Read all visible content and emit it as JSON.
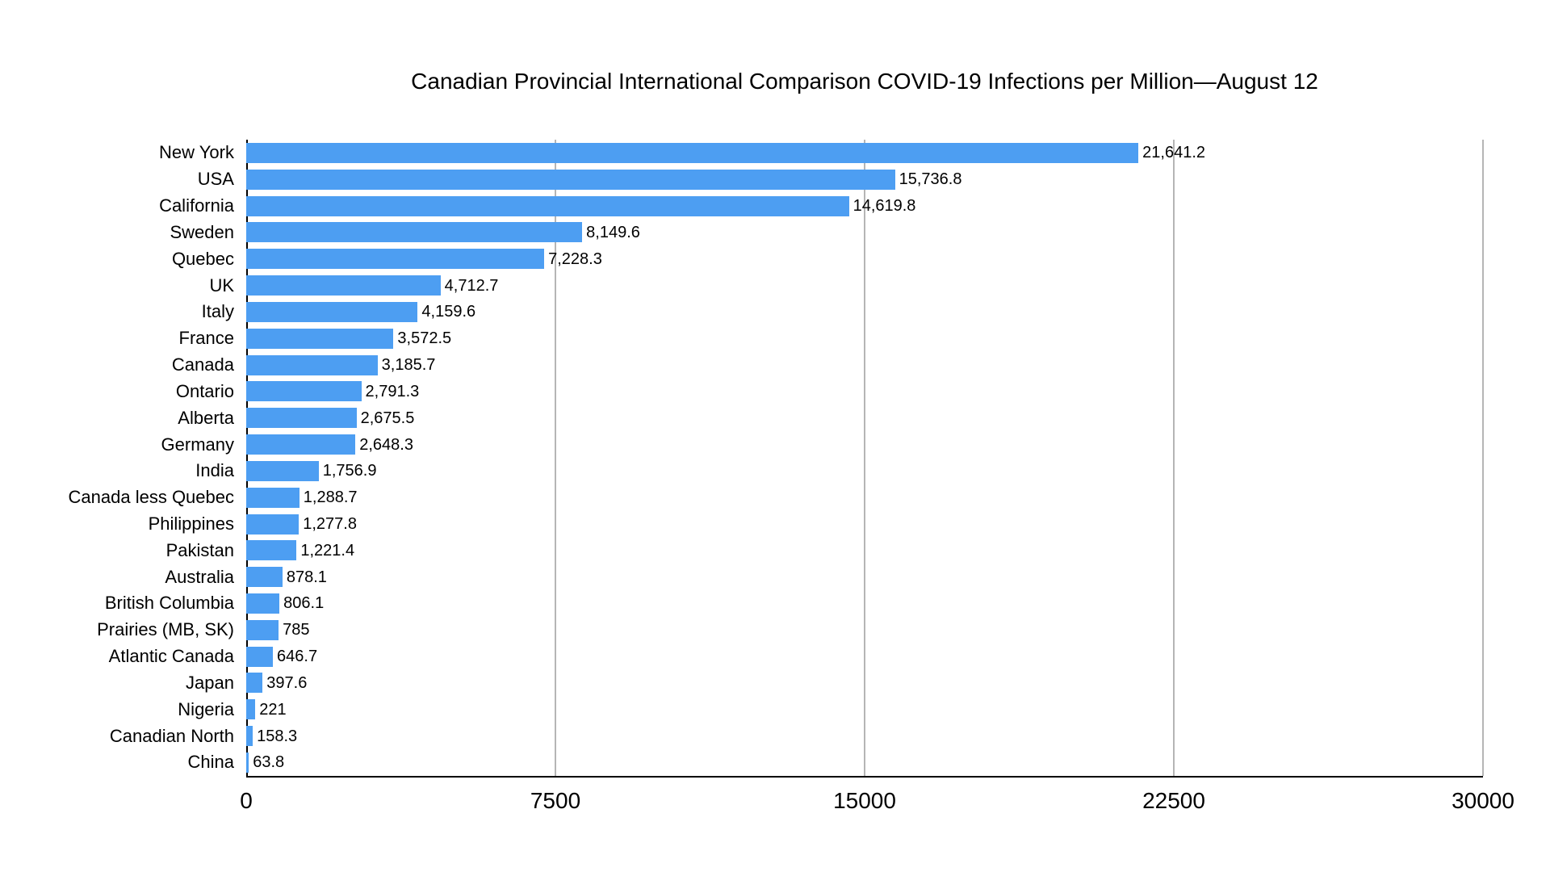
{
  "chart_data": {
    "type": "bar",
    "orientation": "horizontal",
    "title": "Canadian Provincial International Comparison COVID-19 Infections per Million—August 12",
    "categories": [
      "New York",
      "USA",
      "California",
      "Sweden",
      "Quebec",
      "UK",
      "Italy",
      "France",
      "Canada",
      "Ontario",
      "Alberta",
      "Germany",
      "India",
      "Canada less Quebec",
      "Philippines",
      "Pakistan",
      "Australia",
      "British Columbia",
      "Prairies (MB, SK)",
      "Atlantic Canada",
      "Japan",
      "Nigeria",
      "Canadian North",
      "China"
    ],
    "values": [
      21641.2,
      15736.8,
      14619.8,
      8149.6,
      7228.3,
      4712.7,
      4159.6,
      3572.5,
      3185.7,
      2791.3,
      2675.5,
      2648.3,
      1756.9,
      1288.7,
      1277.8,
      1221.4,
      878.1,
      806.1,
      785,
      646.7,
      397.6,
      221,
      158.3,
      63.8
    ],
    "value_labels": [
      "21,641.2",
      "15,736.8",
      "14,619.8",
      "8,149.6",
      "7,228.3",
      "4,712.7",
      "4,159.6",
      "3,572.5",
      "3,185.7",
      "2,791.3",
      "2,675.5",
      "2,648.3",
      "1,756.9",
      "1,288.7",
      "1,277.8",
      "1,221.4",
      "878.1",
      "806.1",
      "785",
      "646.7",
      "397.6",
      "221",
      "158.3",
      "63.8"
    ],
    "xlabel": "",
    "ylabel": "",
    "xlim": [
      0,
      30000
    ],
    "x_ticks": [
      0,
      7500,
      15000,
      22500,
      30000
    ],
    "x_tick_labels": [
      "0",
      "7500",
      "15000",
      "22500",
      "30000"
    ],
    "grid": true,
    "legend": false,
    "bar_color": "#4D9EF2",
    "gridline_color": "#b5b5b5",
    "axis_color": "#000000",
    "text_color": "#000000"
  }
}
